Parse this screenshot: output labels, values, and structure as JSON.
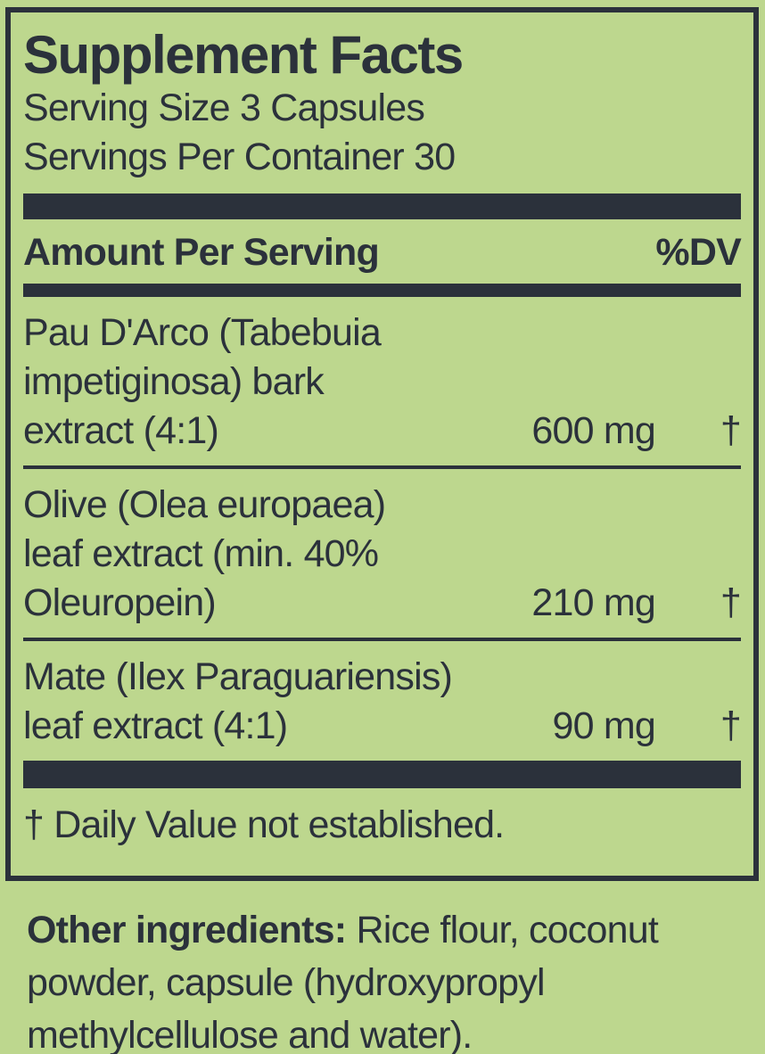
{
  "colors": {
    "background": "#bdd78e",
    "ink": "#2b313b"
  },
  "panel": {
    "title": "Supplement Facts",
    "serving_size": "Serving Size 3 Capsules",
    "servings_per_container": "Servings Per Container 30",
    "header": {
      "amount_label": "Amount Per Serving",
      "dv_label": "%DV"
    },
    "rows": [
      {
        "lines": [
          "Pau D'Arco (Tabebuia",
          "impetiginosa) bark"
        ],
        "last_line": "extract (4:1)",
        "amount": "600 mg",
        "dv": "†"
      },
      {
        "lines": [
          "Olive (Olea europaea)",
          "leaf extract (min. 40%"
        ],
        "last_line": "Oleuropein)",
        "amount": "210 mg",
        "dv": "†"
      },
      {
        "lines": [
          "Mate (Ilex Paraguariensis)"
        ],
        "last_line": "leaf extract (4:1)",
        "amount": "90 mg",
        "dv": "†"
      }
    ],
    "footnote": "† Daily Value not established."
  },
  "other_ingredients": {
    "label": "Other ingredients:",
    "line1_rest": " Rice flour, coconut",
    "line2": "powder, capsule (hydroxypropyl",
    "line3": "methylcellulose and water)."
  }
}
